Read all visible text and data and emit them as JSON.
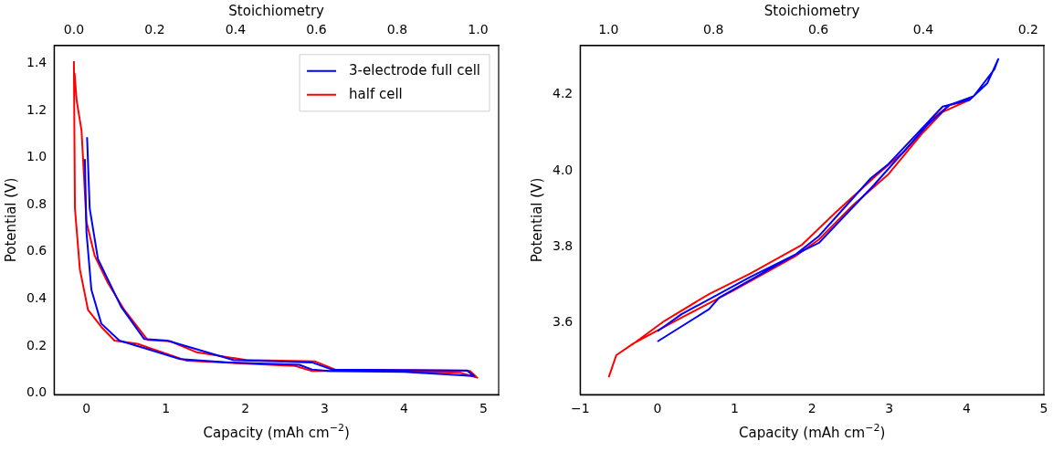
{
  "chart_data": [
    {
      "type": "line",
      "xlabel": "Capacity (mAh cm$^{−2}$)",
      "ylabel": "Potential (V)",
      "x2label": "Stoichiometry",
      "xlim": [
        -0.407,
        5.19
      ],
      "ylim": [
        -0.007,
        1.477
      ],
      "x2lim": [
        -0.049,
        1.051
      ],
      "xticks": [
        0,
        1,
        2,
        3,
        4,
        5
      ],
      "yticks": [
        {
          "value": 0,
          "label": "0.0"
        },
        {
          "value": 0.2,
          "label": "0.2"
        },
        {
          "value": 0.4,
          "label": "0.4"
        },
        {
          "value": 0.6,
          "label": "0.6"
        },
        {
          "value": 0.8,
          "label": "0.8"
        },
        {
          "value": 1,
          "label": "1.0"
        },
        {
          "value": 1.2,
          "label": "1.2"
        },
        {
          "value": 1.4,
          "label": "1.4"
        }
      ],
      "x2ticks": [
        {
          "value": 0,
          "label": "0.0"
        },
        {
          "value": 0.2,
          "label": "0.2"
        },
        {
          "value": 0.4,
          "label": "0.4"
        },
        {
          "value": 0.6,
          "label": "0.6"
        },
        {
          "value": 0.8,
          "label": "0.8"
        },
        {
          "value": 1,
          "label": "1.0"
        }
      ],
      "legend": "top right",
      "series": [
        {
          "name": "3-electrode full cell",
          "color": "#0000ff",
          "x": [
            -0.02,
            0,
            0.062,
            0.187,
            0.415,
            0.768,
            1.18,
            1.8,
            2.68,
            2.84,
            3.05,
            4,
            4.88,
            4.79,
            3.09,
            2.84,
            1.85,
            1.017,
            0.726,
            0.436,
            0.145,
            0.041,
            0.008
          ],
          "values": [
            0.994,
            0.684,
            0.439,
            0.295,
            0.223,
            0.187,
            0.144,
            0.13,
            0.12,
            0.1,
            0.094,
            0.09,
            0.072,
            0.096,
            0.1,
            0.13,
            0.14,
            0.223,
            0.23,
            0.367,
            0.569,
            0.785,
            1.087
          ]
        },
        {
          "name": "half cell",
          "color": "#ff0000",
          "x": [
            -0.158,
            -0.145,
            -0.083,
            0.02,
            0.187,
            0.353,
            0.643,
            0.89,
            1.266,
            2.01,
            2.63,
            2.84,
            3.67,
            4.71,
            4.92,
            4.83,
            3.13,
            2.88,
            2.01,
            1.39,
            1.058,
            0.768,
            0.477,
            0.27,
            0.104,
            0,
            -0.062,
            -0.124,
            -0.15
          ],
          "values": [
            1.41,
            0.785,
            0.526,
            0.353,
            0.281,
            0.223,
            0.209,
            0.18,
            0.137,
            0.125,
            0.115,
            0.094,
            0.094,
            0.086,
            0.065,
            0.094,
            0.1,
            0.134,
            0.14,
            0.173,
            0.22,
            0.226,
            0.353,
            0.468,
            0.583,
            0.727,
            1.116,
            1.245,
            1.36
          ]
        }
      ]
    },
    {
      "type": "line",
      "xlabel": "Capacity (mAh cm$^{−2}$)",
      "ylabel": "Potential (V)",
      "x2label": "Stoichiometry",
      "xlim": [
        -1,
        5
      ],
      "ylim": [
        3.41,
        4.33
      ],
      "x2lim": [
        1.054,
        0.17
      ],
      "xticks": [
        {
          "value": -1,
          "label": "−1"
        },
        0,
        1,
        2,
        3,
        4,
        5
      ],
      "yticks": [
        3.6,
        3.8,
        {
          "value": 4,
          "label": "4.0"
        },
        4.2
      ],
      "x2ticks": [
        {
          "value": 1,
          "label": "1.0"
        },
        0.8,
        0.6,
        0.4,
        0.2
      ],
      "series": [
        {
          "color": "#0000ff",
          "x": [
            0,
            0.667,
            0.8,
            1.778,
            2.09,
            2.76,
            2.98,
            3.69,
            4.04,
            4.27,
            4.41,
            4.36,
            4.09,
            3.78,
            3.51,
            2.8,
            2.09,
            1.2,
            0.311,
            0
          ],
          "values": [
            3.55,
            3.635,
            3.666,
            3.778,
            3.828,
            3.98,
            4.016,
            4.169,
            4.187,
            4.231,
            4.294,
            4.267,
            4.196,
            4.173,
            4.124,
            3.962,
            3.81,
            3.72,
            3.622,
            3.577
          ]
        },
        {
          "color": "#ff0000",
          "x": [
            -0.63,
            -0.533,
            -0.311,
            0.311,
            0.978,
            1.778,
            2.09,
            2.53,
            2.98,
            3.42,
            3.69,
            4.04,
            3.78,
            3.56,
            3.2,
            2.84,
            2.31,
            1.87,
            1.2,
            0.667,
            0.089,
            -0.333
          ],
          "values": [
            3.456,
            3.514,
            3.545,
            3.613,
            3.684,
            3.774,
            3.819,
            3.909,
            3.989,
            4.097,
            4.155,
            4.187,
            4.173,
            4.137,
            4.052,
            3.989,
            3.891,
            3.805,
            3.729,
            3.675,
            3.604,
            3.541
          ]
        }
      ]
    }
  ]
}
